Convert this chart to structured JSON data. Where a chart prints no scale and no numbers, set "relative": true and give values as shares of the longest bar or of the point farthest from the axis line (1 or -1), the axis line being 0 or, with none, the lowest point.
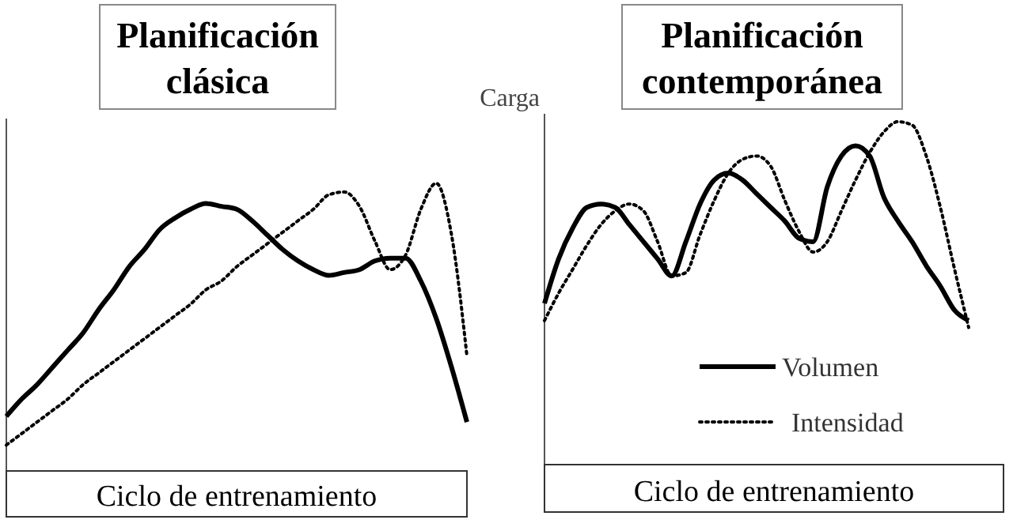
{
  "chart_data": [
    {
      "type": "line",
      "title": "Planificación clásica",
      "xlabel": "Ciclo de entrenamiento",
      "relative": true,
      "categories": [
        null,
        null,
        null,
        null,
        null,
        null,
        null,
        null,
        null,
        null,
        null,
        null,
        null,
        null,
        null,
        null,
        null,
        null,
        null,
        null,
        null,
        null,
        null,
        null,
        null,
        null,
        null,
        null,
        null,
        null,
        null
      ],
      "series": [
        {
          "color": "#000000",
          "line_style": "solid",
          "values": [
            0.19,
            0.25,
            0.3,
            0.36,
            0.42,
            0.48,
            0.56,
            0.63,
            0.71,
            0.77,
            0.84,
            0.88,
            0.91,
            0.93,
            0.92,
            0.91,
            0.87,
            0.82,
            0.77,
            0.73,
            0.7,
            0.68,
            0.69,
            0.7,
            0.73,
            0.74,
            0.74,
            0.66,
            0.53,
            0.36,
            0.17
          ]
        },
        {
          "color": "#000000",
          "line_style": "dotted",
          "values": [
            0.09,
            0.13,
            0.17,
            0.21,
            0.25,
            0.3,
            0.34,
            0.38,
            0.42,
            0.46,
            0.5,
            0.54,
            0.58,
            0.63,
            0.66,
            0.71,
            0.75,
            0.79,
            0.83,
            0.87,
            0.91,
            0.96,
            0.97,
            0.92,
            0.8,
            0.7,
            0.75,
            0.91,
            1,
            0.82,
            0.4
          ]
        }
      ]
    },
    {
      "type": "line",
      "title": "Planificación contemporánea",
      "xlabel": "Ciclo de entrenamiento",
      "ylabel": "Carga",
      "relative": true,
      "legend": "bottom right",
      "categories": [
        null,
        null,
        null,
        null,
        null,
        null,
        null,
        null,
        null,
        null,
        null,
        null,
        null,
        null,
        null,
        null,
        null,
        null,
        null,
        null,
        null,
        null,
        null,
        null,
        null,
        null,
        null,
        null,
        null,
        null,
        null
      ],
      "series": [
        {
          "name": "Volumen",
          "color": "#000000",
          "line_style": "solid",
          "values": [
            0.47,
            0.6,
            0.69,
            0.75,
            0.76,
            0.75,
            0.7,
            0.65,
            0.6,
            0.55,
            0.65,
            0.76,
            0.83,
            0.85,
            0.83,
            0.79,
            0.75,
            0.71,
            0.66,
            0.65,
            0.81,
            0.9,
            0.93,
            0.9,
            0.78,
            0.71,
            0.65,
            0.58,
            0.52,
            0.45,
            0.42
          ]
        },
        {
          "name": "Intensidad",
          "color": "#000000",
          "line_style": "dotted",
          "values": [
            0.42,
            0.5,
            0.57,
            0.64,
            0.7,
            0.74,
            0.76,
            0.74,
            0.65,
            0.55,
            0.56,
            0.67,
            0.77,
            0.85,
            0.89,
            0.9,
            0.87,
            0.77,
            0.68,
            0.62,
            0.65,
            0.74,
            0.83,
            0.91,
            0.97,
            1,
            0.99,
            0.9,
            0.75,
            0.57,
            0.4
          ]
        }
      ]
    }
  ]
}
